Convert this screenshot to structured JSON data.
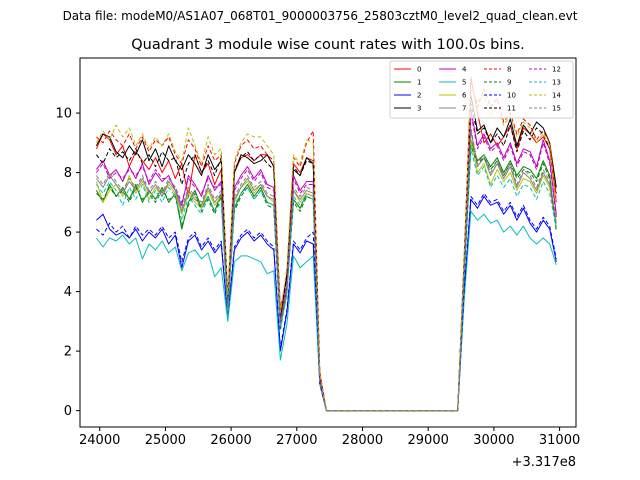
{
  "chart_data": {
    "type": "line",
    "suptitle": "Data file: modeM0/AS1A07_068T01_9000003756_25803cztM0_level2_quad_clean.evt",
    "title": "Quadrant 3 module wise count rates with 100.0s bins.",
    "xlabel": "",
    "ylabel": "",
    "x_offset_label": "+3.317e8",
    "xlim": [
      23700,
      31250
    ],
    "ylim": [
      -0.55,
      11.85
    ],
    "xticks": [
      24000,
      25000,
      26000,
      27000,
      28000,
      29000,
      30000,
      31000
    ],
    "yticks": [
      0,
      2,
      4,
      6,
      8,
      10
    ],
    "grid": false,
    "legend_position": "top-right",
    "legend_columns": 4,
    "x": [
      23950,
      24050,
      24150,
      24250,
      24350,
      24450,
      24550,
      24650,
      24750,
      24850,
      24950,
      25050,
      25150,
      25250,
      25350,
      25450,
      25550,
      25650,
      25750,
      25850,
      25950,
      26050,
      26150,
      26250,
      26350,
      26450,
      26550,
      26650,
      26750,
      26850,
      26950,
      27050,
      27150,
      27250,
      27350,
      27450,
      27550,
      29450,
      29550,
      29650,
      29750,
      29850,
      29950,
      30050,
      30150,
      30250,
      30350,
      30450,
      30550,
      30650,
      30750,
      30850,
      30950
    ],
    "series": [
      {
        "name": "0",
        "color": "#ff0000",
        "dash": false,
        "values": [
          8.8,
          9.3,
          9.1,
          8.6,
          8.9,
          8.2,
          8.7,
          8.4,
          8.1,
          8.5,
          8.0,
          8.4,
          7.8,
          8.3,
          7.2,
          8.6,
          8.0,
          8.3,
          7.6,
          8.1,
          3.6,
          8.0,
          8.5,
          8.6,
          8.4,
          8.6,
          8.6,
          8.2,
          3.4,
          4.5,
          8.3,
          8.0,
          8.5,
          8.4,
          1.2,
          0.0,
          0.0,
          0.0,
          5.0,
          11.2,
          10.0,
          9.0,
          9.3,
          8.9,
          9.2,
          9.6,
          8.8,
          9.5,
          9.3,
          9.0,
          9.2,
          8.8,
          7.0
        ]
      },
      {
        "name": "1",
        "color": "#008000",
        "dash": false,
        "values": [
          7.4,
          7.0,
          7.6,
          7.2,
          7.5,
          7.1,
          7.6,
          7.0,
          7.4,
          7.1,
          7.5,
          7.0,
          7.3,
          6.1,
          7.0,
          7.4,
          6.8,
          7.2,
          6.7,
          7.3,
          3.5,
          6.8,
          7.3,
          7.6,
          7.2,
          7.5,
          7.0,
          6.9,
          2.8,
          4.2,
          7.1,
          6.8,
          7.3,
          7.2,
          1.0,
          0.0,
          0.0,
          0.0,
          4.6,
          9.1,
          8.4,
          8.6,
          8.2,
          8.5,
          8.0,
          8.4,
          7.9,
          8.2,
          8.1,
          7.8,
          8.4,
          7.9,
          6.1
        ]
      },
      {
        "name": "2",
        "color": "#0000ff",
        "dash": false,
        "values": [
          6.4,
          6.6,
          6.1,
          5.9,
          6.0,
          5.8,
          6.1,
          5.7,
          6.0,
          5.8,
          6.1,
          5.6,
          5.9,
          4.8,
          5.7,
          5.9,
          5.4,
          5.7,
          5.3,
          5.6,
          3.1,
          5.4,
          5.8,
          6.0,
          5.7,
          5.9,
          5.6,
          5.4,
          2.0,
          3.3,
          5.6,
          5.3,
          5.7,
          5.6,
          0.9,
          0.0,
          0.0,
          0.0,
          4.0,
          7.1,
          6.8,
          7.2,
          6.9,
          7.0,
          6.6,
          6.9,
          6.4,
          6.8,
          6.3,
          6.0,
          6.4,
          6.1,
          5.0
        ]
      },
      {
        "name": "3",
        "color": "#000000",
        "dash": false,
        "values": [
          8.9,
          9.3,
          9.2,
          8.7,
          8.5,
          8.9,
          8.6,
          9.1,
          8.4,
          8.8,
          8.2,
          8.9,
          8.4,
          8.1,
          8.6,
          8.3,
          7.9,
          8.6,
          8.1,
          8.4,
          3.7,
          8.0,
          8.6,
          8.5,
          8.3,
          8.4,
          8.6,
          8.2,
          3.1,
          4.6,
          8.1,
          7.9,
          8.5,
          8.3,
          1.2,
          0.0,
          0.0,
          0.0,
          5.1,
          10.6,
          9.4,
          9.6,
          9.0,
          9.5,
          9.2,
          9.8,
          8.9,
          9.6,
          9.3,
          9.7,
          9.5,
          9.0,
          7.5
        ]
      },
      {
        "name": "4",
        "color": "#bf00bf",
        "dash": false,
        "values": [
          8.1,
          8.4,
          7.9,
          8.1,
          7.7,
          8.2,
          7.8,
          8.3,
          7.6,
          8.0,
          7.7,
          7.9,
          7.4,
          6.9,
          7.9,
          7.6,
          7.2,
          7.9,
          7.4,
          7.7,
          3.4,
          7.5,
          7.9,
          8.2,
          7.8,
          8.1,
          7.6,
          7.5,
          3.0,
          4.2,
          7.9,
          7.4,
          7.7,
          7.7,
          1.1,
          0.0,
          0.0,
          0.0,
          4.9,
          10.1,
          8.9,
          9.3,
          8.8,
          9.0,
          8.5,
          9.0,
          8.3,
          8.8,
          8.7,
          8.2,
          9.1,
          8.4,
          6.6
        ]
      },
      {
        "name": "5",
        "color": "#00bfbf",
        "dash": false,
        "values": [
          5.8,
          5.5,
          5.8,
          5.7,
          5.9,
          5.6,
          5.8,
          5.1,
          5.6,
          5.4,
          5.7,
          5.3,
          5.5,
          4.7,
          5.3,
          5.4,
          5.1,
          5.3,
          4.5,
          4.8,
          3.0,
          5.0,
          5.2,
          5.2,
          5.1,
          5.0,
          4.6,
          4.7,
          1.7,
          2.9,
          5.2,
          4.8,
          5.0,
          5.2,
          0.9,
          0.0,
          0.0,
          0.0,
          3.8,
          6.7,
          6.4,
          6.6,
          6.3,
          6.4,
          6.0,
          6.2,
          5.9,
          6.2,
          5.8,
          5.6,
          5.8,
          5.6,
          4.9
        ]
      },
      {
        "name": "6",
        "color": "#bfbf00",
        "dash": false,
        "values": [
          7.7,
          7.0,
          7.4,
          7.6,
          7.2,
          7.9,
          7.3,
          7.7,
          7.1,
          7.5,
          7.2,
          7.6,
          7.3,
          6.6,
          7.3,
          7.0,
          6.8,
          7.4,
          6.9,
          7.2,
          3.2,
          7.0,
          7.5,
          7.7,
          7.3,
          7.6,
          7.2,
          7.0,
          2.8,
          3.9,
          7.4,
          7.0,
          7.3,
          7.2,
          1.0,
          0.0,
          0.0,
          0.0,
          4.7,
          9.1,
          8.0,
          8.3,
          7.6,
          8.1,
          7.7,
          8.0,
          7.4,
          7.8,
          7.7,
          7.3,
          7.9,
          7.5,
          6.2
        ]
      },
      {
        "name": "7",
        "color": "#808080",
        "dash": false,
        "values": [
          7.8,
          7.5,
          7.9,
          7.6,
          7.3,
          7.7,
          7.4,
          7.8,
          7.3,
          7.6,
          7.2,
          7.7,
          7.4,
          6.7,
          7.4,
          7.1,
          6.9,
          7.5,
          7.0,
          7.3,
          3.3,
          7.1,
          7.5,
          7.8,
          7.4,
          7.6,
          7.2,
          7.1,
          2.9,
          4.0,
          7.4,
          7.1,
          7.4,
          7.3,
          1.0,
          0.0,
          0.0,
          0.0,
          4.8,
          9.4,
          8.2,
          8.5,
          7.9,
          8.3,
          7.8,
          8.2,
          7.5,
          8.0,
          7.8,
          7.4,
          8.0,
          7.6,
          6.3
        ]
      },
      {
        "name": "8",
        "color": "#ff0000",
        "dash": true,
        "values": [
          9.2,
          9.0,
          9.4,
          9.1,
          8.9,
          9.3,
          8.8,
          9.2,
          8.7,
          9.1,
          8.9,
          9.2,
          8.6,
          8.3,
          9.1,
          8.8,
          8.2,
          8.9,
          8.4,
          8.6,
          3.8,
          8.3,
          8.9,
          9.1,
          8.8,
          8.9,
          8.6,
          8.4,
          3.2,
          4.7,
          8.5,
          8.2,
          9.0,
          9.4,
          1.3,
          0.0,
          0.0,
          0.0,
          5.3,
          11.1,
          10.2,
          10.8,
          10.2,
          10.5,
          9.7,
          10.0,
          9.3,
          9.8,
          9.6,
          9.1,
          9.4,
          9.0,
          7.2
        ]
      },
      {
        "name": "9",
        "color": "#008000",
        "dash": true,
        "values": [
          7.3,
          7.1,
          7.5,
          7.2,
          7.4,
          7.0,
          7.5,
          7.1,
          7.3,
          7.0,
          7.4,
          7.1,
          7.2,
          6.2,
          6.9,
          7.3,
          6.7,
          7.1,
          6.6,
          7.2,
          3.4,
          6.7,
          7.2,
          7.5,
          7.1,
          7.4,
          6.9,
          6.8,
          2.7,
          4.1,
          7.0,
          6.7,
          7.2,
          7.1,
          1.0,
          0.0,
          0.0,
          0.0,
          4.5,
          8.9,
          8.3,
          8.5,
          8.1,
          8.4,
          7.9,
          8.3,
          7.8,
          8.1,
          8.0,
          7.7,
          8.3,
          7.8,
          6.0
        ]
      },
      {
        "name": "10",
        "color": "#0000ff",
        "dash": true,
        "values": [
          6.1,
          5.9,
          6.3,
          6.0,
          6.2,
          5.8,
          6.2,
          5.9,
          6.1,
          5.9,
          6.2,
          5.8,
          6.0,
          5.0,
          5.8,
          6.0,
          5.5,
          5.8,
          5.4,
          5.7,
          3.2,
          5.5,
          5.9,
          6.1,
          5.8,
          6.0,
          5.7,
          5.5,
          2.1,
          3.4,
          5.7,
          5.4,
          5.8,
          6.0,
          0.9,
          0.0,
          0.0,
          0.0,
          4.1,
          7.2,
          6.9,
          7.3,
          7.0,
          7.1,
          6.7,
          7.0,
          6.5,
          6.9,
          6.4,
          6.1,
          6.5,
          6.2,
          5.1
        ]
      },
      {
        "name": "11",
        "color": "#000000",
        "dash": true,
        "values": [
          8.6,
          8.3,
          8.8,
          8.5,
          8.7,
          8.4,
          8.8,
          8.3,
          8.6,
          8.2,
          8.7,
          8.4,
          8.5,
          7.6,
          8.3,
          8.6,
          8.0,
          8.4,
          7.9,
          8.5,
          3.6,
          8.1,
          8.5,
          8.7,
          8.4,
          8.6,
          8.3,
          8.1,
          3.1,
          4.5,
          8.2,
          7.9,
          8.4,
          8.3,
          1.1,
          0.0,
          0.0,
          0.0,
          5.0,
          10.3,
          9.3,
          9.5,
          9.0,
          9.3,
          8.9,
          9.6,
          8.7,
          9.4,
          9.1,
          9.5,
          9.3,
          8.8,
          7.3
        ]
      },
      {
        "name": "12",
        "color": "#bf00bf",
        "dash": true,
        "values": [
          8.0,
          8.3,
          7.8,
          8.0,
          7.8,
          8.1,
          7.9,
          8.2,
          7.7,
          8.1,
          7.8,
          7.8,
          7.5,
          7.0,
          7.8,
          7.5,
          7.3,
          7.8,
          7.5,
          7.6,
          3.4,
          7.4,
          7.8,
          8.1,
          7.7,
          8.0,
          7.5,
          7.4,
          3.0,
          4.2,
          7.8,
          7.3,
          7.6,
          7.6,
          1.1,
          0.0,
          0.0,
          0.0,
          4.9,
          10.0,
          8.8,
          9.2,
          8.7,
          8.9,
          8.4,
          8.9,
          8.2,
          8.7,
          8.6,
          8.1,
          9.0,
          8.3,
          6.5
        ]
      },
      {
        "name": "13",
        "color": "#00bfbf",
        "dash": true,
        "values": [
          7.6,
          7.3,
          7.7,
          7.4,
          6.9,
          7.5,
          7.1,
          7.6,
          7.0,
          7.4,
          7.0,
          7.5,
          7.2,
          6.4,
          7.2,
          6.9,
          6.6,
          7.2,
          6.7,
          7.0,
          3.2,
          6.9,
          7.3,
          7.5,
          7.1,
          7.4,
          7.0,
          6.9,
          2.8,
          3.9,
          7.2,
          6.9,
          7.2,
          7.1,
          1.0,
          0.0,
          0.0,
          0.0,
          4.6,
          8.8,
          7.9,
          8.2,
          7.5,
          7.9,
          7.5,
          7.8,
          7.2,
          7.6,
          7.5,
          7.1,
          7.7,
          7.3,
          6.1
        ]
      },
      {
        "name": "14",
        "color": "#bfbf00",
        "dash": true,
        "values": [
          9.0,
          9.4,
          9.1,
          9.6,
          9.2,
          9.5,
          8.9,
          9.3,
          8.8,
          9.2,
          8.9,
          9.3,
          8.7,
          8.4,
          9.5,
          8.9,
          8.3,
          9.2,
          8.6,
          8.8,
          3.9,
          8.4,
          9.0,
          9.3,
          9.2,
          9.2,
          8.9,
          8.6,
          3.3,
          4.8,
          8.6,
          8.3,
          9.1,
          9.0,
          1.3,
          0.0,
          0.0,
          0.0,
          5.4,
          10.8,
          10.4,
          10.6,
          9.9,
          10.2,
          9.6,
          9.9,
          9.2,
          9.7,
          9.5,
          9.0,
          9.3,
          8.9,
          7.1
        ]
      },
      {
        "name": "15",
        "color": "#808080",
        "dash": true,
        "values": [
          7.9,
          7.6,
          8.0,
          7.7,
          7.4,
          7.8,
          7.5,
          7.9,
          7.4,
          7.7,
          7.3,
          7.8,
          7.5,
          6.8,
          7.5,
          7.2,
          7.0,
          7.6,
          7.1,
          7.4,
          3.3,
          7.2,
          7.6,
          7.9,
          7.5,
          7.7,
          7.3,
          7.2,
          2.9,
          4.1,
          7.5,
          7.2,
          7.5,
          7.4,
          1.0,
          0.0,
          0.0,
          0.0,
          4.8,
          9.5,
          8.3,
          8.6,
          8.0,
          8.4,
          7.9,
          8.3,
          7.6,
          8.1,
          7.9,
          7.5,
          8.1,
          7.7,
          6.4
        ]
      }
    ]
  }
}
